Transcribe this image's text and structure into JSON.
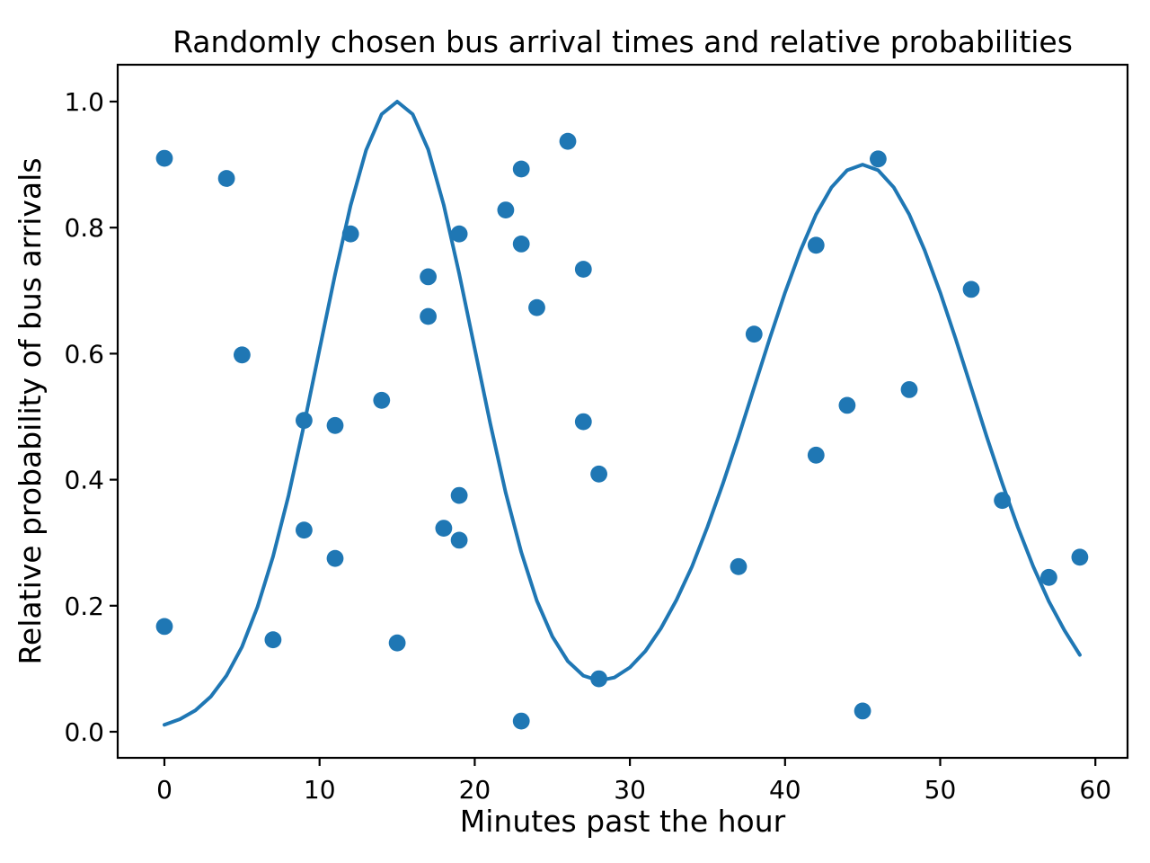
{
  "figure": {
    "title": "Randomly chosen bus arrival times and relative probabilities",
    "xlabel": "Minutes past the hour",
    "ylabel": "Relative probability of bus arrivals"
  },
  "chart_data": {
    "type": "scatter",
    "title": "Randomly chosen bus arrival times and relative probabilities",
    "xlabel": "Minutes past the hour",
    "ylabel": "Relative probability of bus arrivals",
    "xlim": [
      -3.0,
      62.1
    ],
    "ylim": [
      -0.041,
      1.059
    ],
    "grid": false,
    "legend": null,
    "x_ticks": {
      "values": [
        0,
        10,
        20,
        30,
        40,
        50,
        60
      ],
      "labels": [
        "0",
        "10",
        "20",
        "30",
        "40",
        "50",
        "60"
      ]
    },
    "y_ticks": {
      "values": [
        0.0,
        0.2,
        0.4,
        0.6,
        0.8,
        1.0
      ],
      "labels": [
        "0.0",
        "0.2",
        "0.4",
        "0.6",
        "0.8",
        "1.0"
      ]
    },
    "colors": {
      "marker": "#1f77b4",
      "line": "#1f77b4",
      "axis": "#000000",
      "background": "#ffffff"
    },
    "series": [
      {
        "name": "random-sample-points",
        "type": "scatter",
        "color": "#1f77b4",
        "points": [
          [
            0,
            0.91
          ],
          [
            0,
            0.167
          ],
          [
            4,
            0.878
          ],
          [
            5,
            0.598
          ],
          [
            7,
            0.146
          ],
          [
            9,
            0.494
          ],
          [
            9,
            0.32
          ],
          [
            11,
            0.486
          ],
          [
            11,
            0.275
          ],
          [
            12,
            0.79
          ],
          [
            14,
            0.526
          ],
          [
            15,
            0.141
          ],
          [
            17,
            0.722
          ],
          [
            17,
            0.659
          ],
          [
            18,
            0.323
          ],
          [
            19,
            0.79
          ],
          [
            19,
            0.375
          ],
          [
            19,
            0.304
          ],
          [
            22,
            0.828
          ],
          [
            23,
            0.893
          ],
          [
            23,
            0.774
          ],
          [
            23,
            0.017
          ],
          [
            24,
            0.673
          ],
          [
            26,
            0.937
          ],
          [
            27,
            0.734
          ],
          [
            27,
            0.492
          ],
          [
            28,
            0.409
          ],
          [
            28,
            0.084
          ],
          [
            37,
            0.262
          ],
          [
            38,
            0.631
          ],
          [
            42,
            0.772
          ],
          [
            42,
            0.439
          ],
          [
            44,
            0.518
          ],
          [
            45,
            0.033
          ],
          [
            46,
            0.909
          ],
          [
            48,
            0.543
          ],
          [
            52,
            0.702
          ],
          [
            54,
            0.367
          ],
          [
            57,
            0.245
          ],
          [
            59,
            0.277
          ]
        ]
      },
      {
        "name": "relative-probability-curve",
        "type": "line",
        "color": "#1f77b4",
        "x": [
          0,
          1,
          2,
          3,
          4,
          5,
          6,
          7,
          8,
          9,
          10,
          11,
          12,
          13,
          14,
          15,
          16,
          17,
          18,
          19,
          20,
          21,
          22,
          23,
          24,
          25,
          26,
          27,
          28,
          29,
          30,
          31,
          32,
          33,
          34,
          35,
          36,
          37,
          38,
          39,
          40,
          41,
          42,
          43,
          44,
          45,
          46,
          47,
          48,
          49,
          50,
          51,
          52,
          53,
          54,
          55,
          56,
          57,
          58,
          59
        ],
        "y": [
          0.011,
          0.02,
          0.034,
          0.056,
          0.089,
          0.135,
          0.198,
          0.278,
          0.375,
          0.487,
          0.607,
          0.726,
          0.835,
          0.923,
          0.98,
          1.0,
          0.98,
          0.924,
          0.836,
          0.727,
          0.608,
          0.489,
          0.379,
          0.285,
          0.208,
          0.151,
          0.112,
          0.089,
          0.081,
          0.086,
          0.102,
          0.128,
          0.164,
          0.209,
          0.262,
          0.325,
          0.394,
          0.468,
          0.546,
          0.623,
          0.697,
          0.764,
          0.821,
          0.864,
          0.891,
          0.9,
          0.891,
          0.864,
          0.821,
          0.764,
          0.697,
          0.623,
          0.546,
          0.468,
          0.394,
          0.325,
          0.262,
          0.207,
          0.161,
          0.122
        ]
      }
    ]
  }
}
